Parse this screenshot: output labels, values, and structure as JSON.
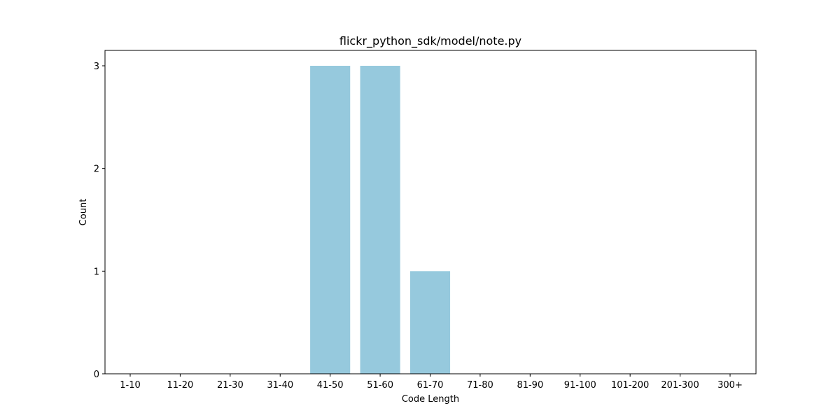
{
  "chart_data": {
    "type": "bar",
    "title": "flickr_python_sdk/model/note.py",
    "xlabel": "Code Length",
    "ylabel": "Count",
    "categories": [
      "1-10",
      "11-20",
      "21-30",
      "31-40",
      "41-50",
      "51-60",
      "61-70",
      "71-80",
      "81-90",
      "91-100",
      "101-200",
      "201-300",
      "300+"
    ],
    "values": [
      0,
      0,
      0,
      0,
      3,
      3,
      1,
      0,
      0,
      0,
      0,
      0,
      0
    ],
    "ylim": [
      0,
      3.15
    ],
    "yticks": [
      0,
      1,
      2,
      3
    ],
    "bar_color": "#96c9dd",
    "grid": false,
    "legend": "none"
  }
}
